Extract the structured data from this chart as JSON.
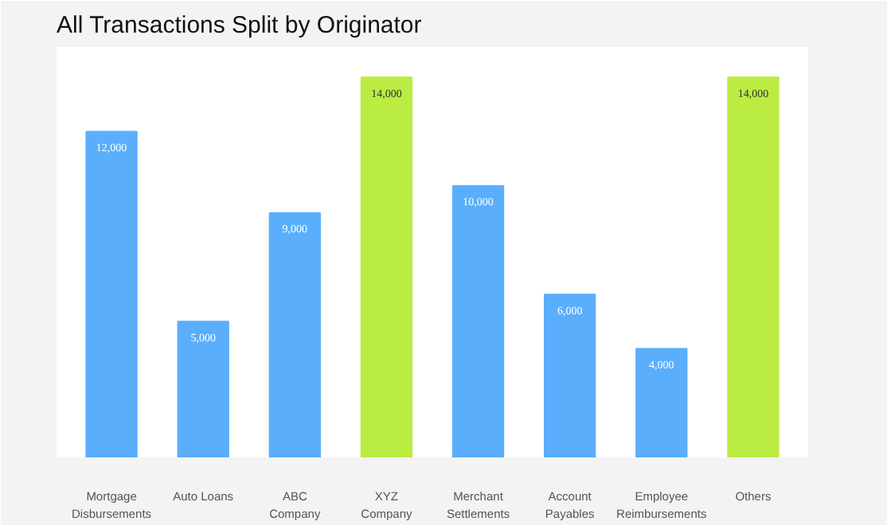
{
  "chart_data": {
    "type": "bar",
    "title": "All Transactions Split by Originator",
    "categories": [
      "Mortgage Disbursements",
      "Auto Loans",
      "ABC Company",
      "XYZ Company",
      "Merchant Settlements",
      "Account Payables",
      "Employee Reimbursements",
      "Others"
    ],
    "values": [
      12000,
      5000,
      9000,
      14000,
      10000,
      6000,
      4000,
      14000
    ],
    "colors": [
      "#5aaefc",
      "#5aaefc",
      "#5aaefc",
      "#bbec42",
      "#5aaefc",
      "#5aaefc",
      "#5aaefc",
      "#bbec42"
    ],
    "value_labels": [
      "12,000",
      "5,000",
      "9,000",
      "14,000",
      "10,000",
      "6,000",
      "4,000",
      "14,000"
    ],
    "grid": false
  }
}
